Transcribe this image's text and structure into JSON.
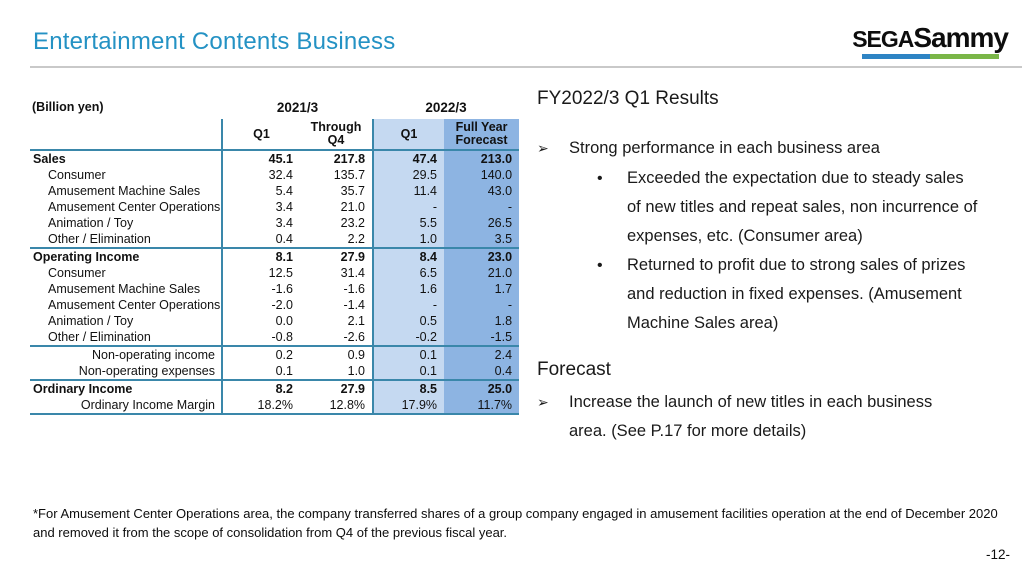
{
  "header": {
    "title": "Entertainment Contents Business",
    "logo": {
      "sega": "SEGA",
      "sammy": "Sammy",
      "bar_blue": "#2e84c4",
      "bar_green": "#7ab648"
    }
  },
  "table": {
    "unit_label": "(Billion yen)",
    "col_groups": [
      "2021/3",
      "2022/3"
    ],
    "col_headers": [
      "Q1",
      "Through Q4",
      "Q1",
      "Full Year Forecast"
    ],
    "colors": {
      "border": "#3a87aa",
      "q1_2022_bg": "#c5d9f1",
      "forecast_bg": "#8db4e2"
    },
    "rows": [
      {
        "label": "Sales",
        "style": "section",
        "rule": false,
        "values": [
          "45.1",
          "217.8",
          "47.4",
          "213.0"
        ]
      },
      {
        "label": "Consumer",
        "style": "sub",
        "rule": false,
        "values": [
          "32.4",
          "135.7",
          "29.5",
          "140.0"
        ]
      },
      {
        "label": "Amusement Machine Sales",
        "style": "sub",
        "rule": false,
        "values": [
          "5.4",
          "35.7",
          "11.4",
          "43.0"
        ]
      },
      {
        "label": "Amusement Center Operations",
        "style": "sub",
        "rule": false,
        "values": [
          "3.4",
          "21.0",
          "-",
          "-"
        ]
      },
      {
        "label": "Animation / Toy",
        "style": "sub",
        "rule": false,
        "values": [
          "3.4",
          "23.2",
          "5.5",
          "26.5"
        ]
      },
      {
        "label": "Other / Elimination",
        "style": "sub",
        "rule": false,
        "values": [
          "0.4",
          "2.2",
          "1.0",
          "3.5"
        ]
      },
      {
        "label": "Operating Income",
        "style": "section",
        "rule": true,
        "values": [
          "8.1",
          "27.9",
          "8.4",
          "23.0"
        ]
      },
      {
        "label": "Consumer",
        "style": "sub",
        "rule": false,
        "values": [
          "12.5",
          "31.4",
          "6.5",
          "21.0"
        ]
      },
      {
        "label": "Amusement Machine Sales",
        "style": "sub",
        "rule": false,
        "values": [
          "-1.6",
          "-1.6",
          "1.6",
          "1.7"
        ]
      },
      {
        "label": "Amusement Center Operations",
        "style": "sub",
        "rule": false,
        "values": [
          "-2.0",
          "-1.4",
          "-",
          "-"
        ]
      },
      {
        "label": "Animation / Toy",
        "style": "sub",
        "rule": false,
        "values": [
          "0.0",
          "2.1",
          "0.5",
          "1.8"
        ]
      },
      {
        "label": "Other / Elimination",
        "style": "sub",
        "rule": false,
        "values": [
          "-0.8",
          "-2.6",
          "-0.2",
          "-1.5"
        ]
      },
      {
        "label": "Non-operating income",
        "style": "note",
        "rule": true,
        "values": [
          "0.2",
          "0.9",
          "0.1",
          "2.4"
        ]
      },
      {
        "label": "Non-operating expenses",
        "style": "note",
        "rule": false,
        "values": [
          "0.1",
          "1.0",
          "0.1",
          "0.4"
        ]
      },
      {
        "label": "Ordinary Income",
        "style": "section",
        "rule": true,
        "values": [
          "8.2",
          "27.9",
          "8.5",
          "25.0"
        ]
      },
      {
        "label": "Ordinary Income Margin",
        "style": "note",
        "rule": false,
        "values": [
          "18.2%",
          "12.8%",
          "17.9%",
          "11.7%"
        ]
      }
    ]
  },
  "results": {
    "heading": "FY2022/3 Q1 Results",
    "arrow_glyph": "➢",
    "bullet_glyph": "•",
    "point": "Strong performance in each business area",
    "bullets": [
      "Exceeded the expectation due to steady sales of new titles and repeat sales, non incurrence of expenses, etc. (Consumer area)",
      "Returned to profit due to strong sales of prizes and reduction in fixed expenses. (Amusement Machine Sales area)"
    ]
  },
  "forecast": {
    "heading": "Forecast",
    "point": "Increase the launch of new titles in each business area. (See P.17 for more details)"
  },
  "footnote": "*For Amusement Center Operations area, the company transferred shares of a group company engaged in amusement facilities operation at the end of December 2020 and removed it from the scope of consolidation from Q4 of the previous fiscal year.",
  "page_number": "-12-"
}
